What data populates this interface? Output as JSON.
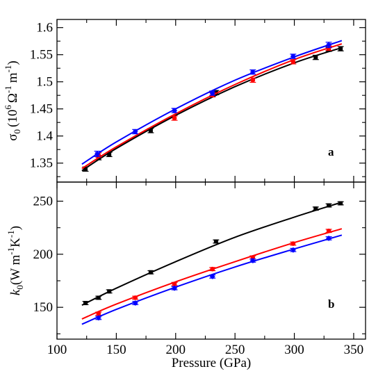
{
  "chart_data": [
    {
      "panel": "a",
      "type": "scatter",
      "panel_label": "a",
      "ylabel_symbol": "σ",
      "ylabel_subscript": "0",
      "ylabel_units": "(10",
      "ylabel_exp1": "6",
      "ylabel_unit_omega": "Ω",
      "ylabel_exp2": "-1",
      "ylabel_unit_m": "m",
      "ylabel_exp3": "-1",
      "ylabel_close": ")",
      "xlim": [
        100,
        360
      ],
      "ylim": [
        1.315,
        1.615
      ],
      "yticks": [
        1.35,
        1.4,
        1.45,
        1.5,
        1.55,
        1.6
      ],
      "ytick_labels": [
        "1.35",
        "1.4",
        "1.45",
        "1.5",
        "1.55",
        "1.6"
      ],
      "series": [
        {
          "color": "#000000",
          "marker": "square",
          "points": [
            {
              "x": 124,
              "y": 1.339,
              "err": 0.004
            },
            {
              "x": 135,
              "y": 1.36,
              "err": 0.004
            },
            {
              "x": 144,
              "y": 1.366,
              "err": 0.004
            },
            {
              "x": 179,
              "y": 1.41,
              "err": 0.004
            },
            {
              "x": 234,
              "y": 1.48,
              "err": 0.004
            },
            {
              "x": 318,
              "y": 1.545,
              "err": 0.004
            },
            {
              "x": 329,
              "y": 1.56,
              "err": 0.004
            },
            {
              "x": 339,
              "y": 1.561,
              "err": 0.004
            }
          ],
          "fit": [
            [
              121,
              1.336
            ],
            [
              150,
              1.377
            ],
            [
              200,
              1.438
            ],
            [
              250,
              1.491
            ],
            [
              300,
              1.535
            ],
            [
              340,
              1.563
            ]
          ]
        },
        {
          "color": "#ff0000",
          "marker": "circle",
          "points": [
            {
              "x": 135,
              "y": 1.365,
              "err": 0.004
            },
            {
              "x": 199,
              "y": 1.433,
              "err": 0.004
            },
            {
              "x": 231,
              "y": 1.476,
              "err": 0.004
            },
            {
              "x": 265,
              "y": 1.503,
              "err": 0.004
            },
            {
              "x": 299,
              "y": 1.537,
              "err": 0.004
            },
            {
              "x": 329,
              "y": 1.562,
              "err": 0.004
            }
          ],
          "fit": [
            [
              121,
              1.34
            ],
            [
              150,
              1.38
            ],
            [
              200,
              1.441
            ],
            [
              250,
              1.495
            ],
            [
              300,
              1.541
            ],
            [
              340,
              1.57
            ]
          ]
        },
        {
          "color": "#0000ff",
          "marker": "star",
          "points": [
            {
              "x": 134,
              "y": 1.367,
              "err": 0.005
            },
            {
              "x": 166,
              "y": 1.408,
              "err": 0.004
            },
            {
              "x": 199,
              "y": 1.447,
              "err": 0.004
            },
            {
              "x": 231,
              "y": 1.479,
              "err": 0.004
            },
            {
              "x": 265,
              "y": 1.518,
              "err": 0.004
            },
            {
              "x": 299,
              "y": 1.547,
              "err": 0.004
            },
            {
              "x": 329,
              "y": 1.568,
              "err": 0.005
            }
          ],
          "fit": [
            [
              121,
              1.348
            ],
            [
              150,
              1.389
            ],
            [
              200,
              1.45
            ],
            [
              250,
              1.503
            ],
            [
              300,
              1.546
            ],
            [
              340,
              1.576
            ]
          ]
        }
      ]
    },
    {
      "panel": "b",
      "type": "scatter",
      "panel_label": "b",
      "ylabel_symbol": "k",
      "ylabel_subscript": "0",
      "ylabel_units": "(W m",
      "ylabel_exp1": "-1",
      "ylabel_unit_k": "K",
      "ylabel_exp2": "-1",
      "ylabel_close": ")",
      "xlabel": "Pressure (GPa)",
      "xlim": [
        100,
        360
      ],
      "ylim": [
        120,
        268
      ],
      "xticks": [
        100,
        150,
        200,
        250,
        300,
        350
      ],
      "xtick_labels": [
        "100",
        "150",
        "200",
        "250",
        "300",
        "350"
      ],
      "yticks": [
        150,
        200,
        250
      ],
      "ytick_labels": [
        "150",
        "200",
        "250"
      ],
      "series": [
        {
          "color": "#000000",
          "marker": "square",
          "points": [
            {
              "x": 124,
              "y": 154,
              "err": 1.5
            },
            {
              "x": 135,
              "y": 159,
              "err": 1.5
            },
            {
              "x": 144,
              "y": 165,
              "err": 1.5
            },
            {
              "x": 179,
              "y": 183,
              "err": 1.5
            },
            {
              "x": 234,
              "y": 212,
              "err": 1.5
            },
            {
              "x": 318,
              "y": 243,
              "err": 1.5
            },
            {
              "x": 329,
              "y": 246,
              "err": 1.5
            },
            {
              "x": 339,
              "y": 248,
              "err": 1.5
            }
          ],
          "fit": [
            [
              121,
              152
            ],
            [
              150,
              168
            ],
            [
              200,
              193
            ],
            [
              250,
              216
            ],
            [
              300,
              235
            ],
            [
              340,
              249
            ]
          ]
        },
        {
          "color": "#ff0000",
          "marker": "circle",
          "points": [
            {
              "x": 135,
              "y": 144,
              "err": 1.5
            },
            {
              "x": 166,
              "y": 159,
              "err": 1.5
            },
            {
              "x": 199,
              "y": 172,
              "err": 1.5
            },
            {
              "x": 231,
              "y": 186,
              "err": 1.5
            },
            {
              "x": 265,
              "y": 197,
              "err": 1.5
            },
            {
              "x": 299,
              "y": 210,
              "err": 1.5
            },
            {
              "x": 329,
              "y": 222,
              "err": 1.5
            }
          ],
          "fit": [
            [
              121,
              139
            ],
            [
              150,
              153
            ],
            [
              200,
              174
            ],
            [
              250,
              193
            ],
            [
              300,
              211
            ],
            [
              340,
              224
            ]
          ]
        },
        {
          "color": "#0000ff",
          "marker": "star",
          "points": [
            {
              "x": 135,
              "y": 140,
              "err": 1.5
            },
            {
              "x": 166,
              "y": 154,
              "err": 1.5
            },
            {
              "x": 199,
              "y": 168,
              "err": 1.5
            },
            {
              "x": 231,
              "y": 179,
              "err": 1.5
            },
            {
              "x": 265,
              "y": 194,
              "err": 1.5
            },
            {
              "x": 299,
              "y": 204,
              "err": 1.5
            },
            {
              "x": 329,
              "y": 215,
              "err": 1.5
            }
          ],
          "fit": [
            [
              121,
              134
            ],
            [
              150,
              148
            ],
            [
              200,
              169
            ],
            [
              250,
              188
            ],
            [
              300,
              205
            ],
            [
              340,
              218
            ]
          ]
        }
      ]
    }
  ]
}
